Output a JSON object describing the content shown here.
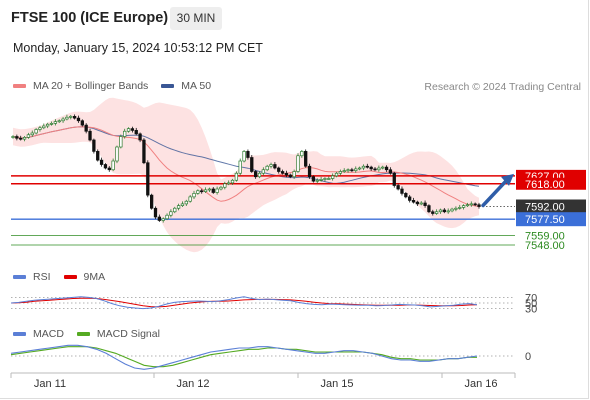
{
  "header": {
    "title": "FTSE 100 (ICE Europe)",
    "timeframe": "30 MIN",
    "timestamp": "Monday, January 15, 2024 10:53:12 PM CET",
    "credit": "Research © 2024 Trading Central"
  },
  "colors": {
    "up_candle": "#2e7d32",
    "down_candle": "#111111",
    "bollinger_fill": "#fde2e2",
    "ma20": "#f08080",
    "ma50": "#3a5795",
    "resistance": "#e00000",
    "support": "#3b6fd8",
    "target": "#2e8b22",
    "last_price": "#333333",
    "rsi": "#5b7fd6",
    "rsi_ma": "#e00000",
    "macd": "#5b7fd6",
    "macd_signal": "#55aa22",
    "arrow": "#2f5da8"
  },
  "chart_data": [
    {
      "type": "candlestick",
      "panel": "price",
      "legend": [
        "MA 20 + Bollinger Bands",
        "MA 50"
      ],
      "x_ticks": [
        "Jan 11",
        "Jan 12",
        "Jan 15",
        "Jan 16"
      ],
      "ylim": [
        7540,
        7700
      ],
      "closes": [
        7672,
        7670,
        7669,
        7671,
        7674,
        7676,
        7680,
        7682,
        7684,
        7686,
        7687,
        7689,
        7690,
        7692,
        7694,
        7695,
        7693,
        7690,
        7685,
        7678,
        7668,
        7655,
        7645,
        7640,
        7636,
        7634,
        7644,
        7660,
        7672,
        7678,
        7681,
        7679,
        7675,
        7668,
        7642,
        7605,
        7590,
        7580,
        7576,
        7578,
        7582,
        7586,
        7590,
        7593,
        7595,
        7598,
        7603,
        7607,
        7610,
        7609,
        7611,
        7612,
        7608,
        7612,
        7614,
        7618,
        7619,
        7622,
        7630,
        7644,
        7655,
        7648,
        7632,
        7626,
        7630,
        7634,
        7638,
        7640,
        7636,
        7632,
        7630,
        7628,
        7626,
        7632,
        7650,
        7655,
        7638,
        7626,
        7621,
        7622,
        7623,
        7624,
        7624,
        7627,
        7630,
        7632,
        7633,
        7634,
        7633,
        7635,
        7636,
        7638,
        7637,
        7635,
        7634,
        7636,
        7637,
        7634,
        7630,
        7616,
        7612,
        7607,
        7603,
        7599,
        7597,
        7595,
        7596,
        7593,
        7586,
        7584,
        7586,
        7588,
        7586,
        7587,
        7589,
        7590,
        7591,
        7593,
        7594,
        7595,
        7594,
        7592
      ],
      "last_price": 7592.0,
      "levels": [
        {
          "label": "7627.00",
          "kind": "resistance",
          "value": 7627.0
        },
        {
          "label": "7618.00",
          "kind": "resistance",
          "value": 7618.0
        },
        {
          "label": "7592.00",
          "kind": "last",
          "value": 7592.0
        },
        {
          "label": "7577.50",
          "kind": "pivot",
          "value": 7577.5
        },
        {
          "label": "7559.00",
          "kind": "target",
          "value": 7559.0
        },
        {
          "label": "7548.00",
          "kind": "target",
          "value": 7548.0
        }
      ]
    },
    {
      "type": "line",
      "panel": "rsi",
      "legend": [
        "RSI",
        "9MA"
      ],
      "levels": [
        "70",
        "50",
        "30"
      ],
      "ylim": [
        0,
        100
      ],
      "rsi": [
        50,
        52,
        56,
        60,
        62,
        64,
        66,
        68,
        70,
        72,
        70,
        66,
        58,
        48,
        40,
        35,
        32,
        30,
        32,
        38,
        46,
        52,
        55,
        56,
        57,
        56,
        55,
        58,
        62,
        68,
        72,
        66,
        62,
        64,
        62,
        60,
        58,
        52,
        48,
        45,
        44,
        46,
        45,
        44,
        43,
        42,
        42,
        40,
        41,
        43,
        45,
        44,
        43,
        40,
        36,
        38,
        40,
        42,
        46,
        48,
        44
      ],
      "rsi_ma": [
        50,
        51,
        53,
        56,
        58,
        60,
        62,
        64,
        66,
        67,
        67,
        66,
        63,
        59,
        55,
        50,
        45,
        40,
        37,
        36,
        38,
        42,
        46,
        50,
        53,
        55,
        56,
        56,
        57,
        59,
        61,
        62,
        63,
        63,
        63,
        62,
        61,
        59,
        56,
        53,
        50,
        48,
        47,
        46,
        45,
        44,
        43,
        42,
        42,
        42,
        42,
        43,
        43,
        42,
        41,
        40,
        40,
        40,
        41,
        43,
        44
      ]
    },
    {
      "type": "line",
      "panel": "macd",
      "legend": [
        "MACD",
        "MACD Signal"
      ],
      "levels": [
        "0"
      ],
      "ylim": [
        -12,
        12
      ],
      "macd": [
        2,
        3,
        4,
        5,
        6,
        7,
        8,
        8,
        7,
        5,
        2,
        -2,
        -6,
        -9,
        -10,
        -9,
        -7,
        -5,
        -3,
        -1,
        1,
        3,
        4,
        5,
        6,
        6,
        7,
        7,
        6,
        5,
        4,
        3,
        2,
        2,
        3,
        4,
        4,
        3,
        2,
        0,
        -2,
        -3,
        -3,
        -4,
        -4,
        -3,
        -2,
        -2,
        -1,
        0
      ],
      "signal": [
        1,
        2,
        3,
        4,
        5,
        6,
        7,
        7,
        7,
        6,
        4,
        2,
        -1,
        -4,
        -7,
        -8,
        -8,
        -7,
        -5,
        -3,
        -1,
        1,
        2,
        3,
        4,
        5,
        5,
        6,
        6,
        5,
        5,
        4,
        3,
        3,
        3,
        3,
        3,
        3,
        2,
        1,
        -1,
        -2,
        -2,
        -3,
        -3,
        -3,
        -2,
        -2,
        -1,
        -1
      ]
    }
  ]
}
